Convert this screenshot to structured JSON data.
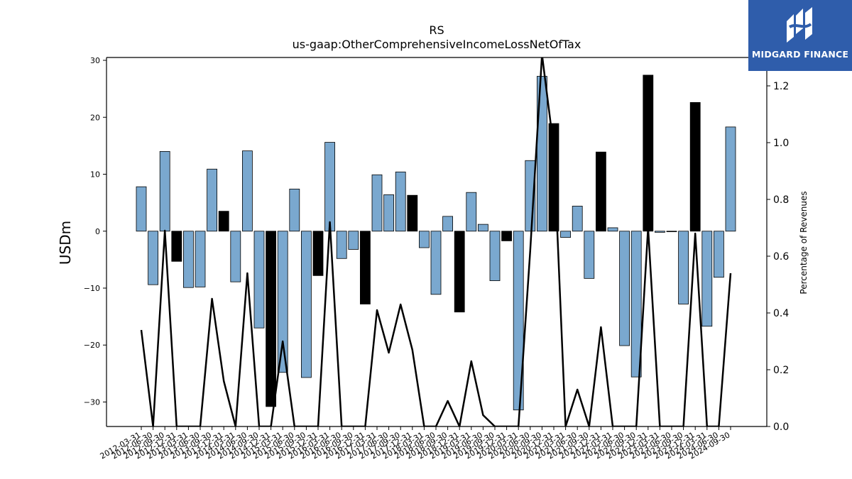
{
  "logo": {
    "text": "MIDGARD FINANCE",
    "background": "#2f5dab"
  },
  "chart_data": {
    "type": "bar",
    "title": "RS",
    "subtitle": "us-gaap:OtherComprehensiveIncomeLossNetOfTax",
    "ylabel": "USDm",
    "y2label": "Percentage of Revenues",
    "ylim": [
      -34.3,
      30.5
    ],
    "y2lim": [
      0.0,
      1.3
    ],
    "yticks": [
      -30,
      -20,
      -10,
      0,
      10,
      20,
      30
    ],
    "y2ticks": [
      "0.0",
      "0.2",
      "0.4",
      "0.6",
      "0.8",
      "1.0",
      "1.2"
    ],
    "grid": false,
    "colors": {
      "positive_bar": "#7aa8cf",
      "negative_bar": "#000000",
      "line": "#000000"
    },
    "categories": [
      "2012-03-31",
      "2012-06-30",
      "2012-09-30",
      "2012-12-31",
      "2013-03-31",
      "2013-06-30",
      "2013-09-30",
      "2013-12-31",
      "2014-03-31",
      "2014-06-30",
      "2014-09-30",
      "2014-12-31",
      "2015-03-31",
      "2015-06-30",
      "2015-09-30",
      "2015-12-31",
      "2016-03-31",
      "2016-06-30",
      "2016-09-30",
      "2016-12-31",
      "2017-03-31",
      "2017-06-30",
      "2017-09-30",
      "2017-12-31",
      "2018-03-31",
      "2018-06-30",
      "2018-09-30",
      "2018-12-31",
      "2019-03-31",
      "2019-06-30",
      "2019-09-30",
      "2019-12-31",
      "2020-03-31",
      "2020-06-30",
      "2020-09-30",
      "2020-12-31",
      "2021-03-31",
      "2021-06-30",
      "2021-09-30",
      "2021-12-31",
      "2022-03-31",
      "2022-06-30",
      "2022-09-30",
      "2022-12-31",
      "2023-03-31",
      "2023-06-30",
      "2023-09-30",
      "2023-12-31",
      "2024-03-31",
      "2024-06-30",
      "2024-09-30"
    ],
    "series": [
      {
        "values": [
          7.8,
          -9.4,
          14.0,
          -5.3,
          -9.9,
          -9.8,
          10.9,
          3.5,
          -8.9,
          14.1,
          -17.0,
          -30.8,
          -24.8,
          7.4,
          -25.7,
          -7.8,
          15.6,
          -4.8,
          -3.2,
          -12.8,
          9.9,
          6.4,
          10.4,
          6.3,
          -2.9,
          -11.1,
          2.6,
          -14.2,
          6.8,
          1.2,
          -8.7,
          -1.7,
          -31.4,
          12.4,
          27.2,
          18.9,
          -1.1,
          4.4,
          -8.3,
          13.9,
          0.6,
          -20.1,
          -25.6,
          27.4,
          -0.2,
          -0.1,
          -12.8,
          22.6,
          -16.7,
          -8.1,
          18.3
        ],
        "highlight": [
          false,
          false,
          false,
          true,
          false,
          false,
          false,
          true,
          false,
          false,
          false,
          true,
          false,
          false,
          false,
          true,
          false,
          false,
          false,
          true,
          false,
          false,
          false,
          true,
          false,
          false,
          false,
          true,
          false,
          false,
          false,
          true,
          false,
          false,
          false,
          true,
          false,
          false,
          false,
          true,
          false,
          false,
          false,
          true,
          false,
          false,
          false,
          true,
          false,
          false,
          false
        ]
      },
      {
        "values": [
          0.34,
          0.0,
          0.69,
          0.0,
          0.0,
          0.0,
          0.45,
          0.16,
          0.0,
          0.54,
          0.0,
          0.0,
          0.3,
          0.0,
          0.0,
          0.0,
          0.72,
          0.0,
          0.0,
          0.0,
          0.41,
          0.26,
          0.43,
          0.27,
          0.0,
          0.0,
          0.09,
          0.0,
          0.23,
          0.04,
          0.0,
          0.0,
          0.0,
          0.62,
          1.31,
          0.98,
          0.0,
          0.13,
          0.0,
          0.35,
          0.0,
          0.0,
          0.0,
          0.7,
          0.0,
          0.0,
          0.0,
          0.68,
          0.0,
          0.0,
          0.54
        ]
      }
    ]
  }
}
